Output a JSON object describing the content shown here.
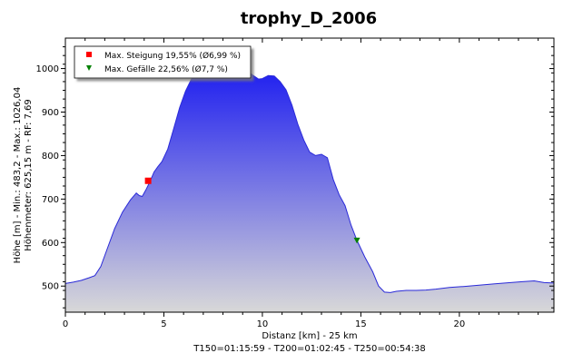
{
  "chart_data": {
    "type": "area",
    "title": "trophy_D_2006",
    "xlabel": "Distanz [km] - 25 km",
    "footer": "T150=01:15:59 - T200=01:02:45 - T250=00:54:38",
    "ylabel_line1": "Höhe [m] - Min.: 483,2 - Max.: 1026,04",
    "ylabel_line2": "Höhenmeter: 625,15 m - RF: 7,69",
    "xlim": [
      0,
      24.8
    ],
    "ylim": [
      440,
      1070
    ],
    "x_ticks": [
      0,
      5,
      10,
      15,
      20
    ],
    "y_ticks": [
      500,
      600,
      700,
      800,
      900,
      1000
    ],
    "grid": false,
    "legend_position": "top-left",
    "colors": {
      "fill_top": "#1c1cf0",
      "fill_bottom": "#d8d8d8",
      "line": "#2a2ad8",
      "steigung_marker": "#ff0000",
      "gefaelle_marker": "#008000"
    },
    "series": [
      {
        "x": [
          0,
          0.4,
          0.8,
          1.2,
          1.5,
          1.8,
          2.1,
          2.5,
          2.9,
          3.3,
          3.6,
          3.75,
          3.9,
          4.1,
          4.3,
          4.5,
          4.7,
          4.9,
          5.2,
          5.5,
          5.8,
          6.1,
          6.4,
          6.8,
          7.2,
          7.6,
          8.0,
          8.4,
          8.8,
          9.2,
          9.5,
          9.8,
          10.0,
          10.3,
          10.6,
          10.9,
          11.2,
          11.5,
          11.8,
          12.1,
          12.4,
          12.7,
          13.0,
          13.3,
          13.6,
          13.9,
          14.2,
          14.5,
          14.8,
          15.2,
          15.6,
          15.9,
          16.2,
          16.5,
          16.8,
          17.3,
          17.8,
          18.3,
          18.8,
          19.5,
          20.2,
          21.0,
          21.8,
          22.6,
          23.2,
          23.8,
          24.3,
          24.8
        ],
        "y": [
          506,
          509,
          513,
          519,
          524,
          545,
          583,
          632,
          670,
          698,
          714,
          708,
          706,
          722,
          741,
          762,
          775,
          786,
          815,
          862,
          910,
          948,
          976,
          988,
          994,
          998,
          1004,
          1008,
          1006,
          996,
          985,
          976,
          977,
          984,
          983,
          970,
          951,
          916,
          872,
          836,
          808,
          800,
          803,
          795,
          745,
          710,
          685,
          640,
          605,
          567,
          533,
          500,
          486,
          485,
          488,
          490,
          490,
          491,
          493,
          497,
          499,
          502,
          505,
          508,
          510,
          512,
          508,
          507
        ]
      }
    ],
    "annotations": [
      {
        "label": "Max. Steigung 19,55% (Ø6,99 %)",
        "marker": "square",
        "x": 4.2,
        "y": 742
      },
      {
        "label": "Max. Gefälle 22,56% (Ø7,7 %)",
        "marker": "triangle-down",
        "x": 14.8,
        "y": 605
      }
    ]
  }
}
